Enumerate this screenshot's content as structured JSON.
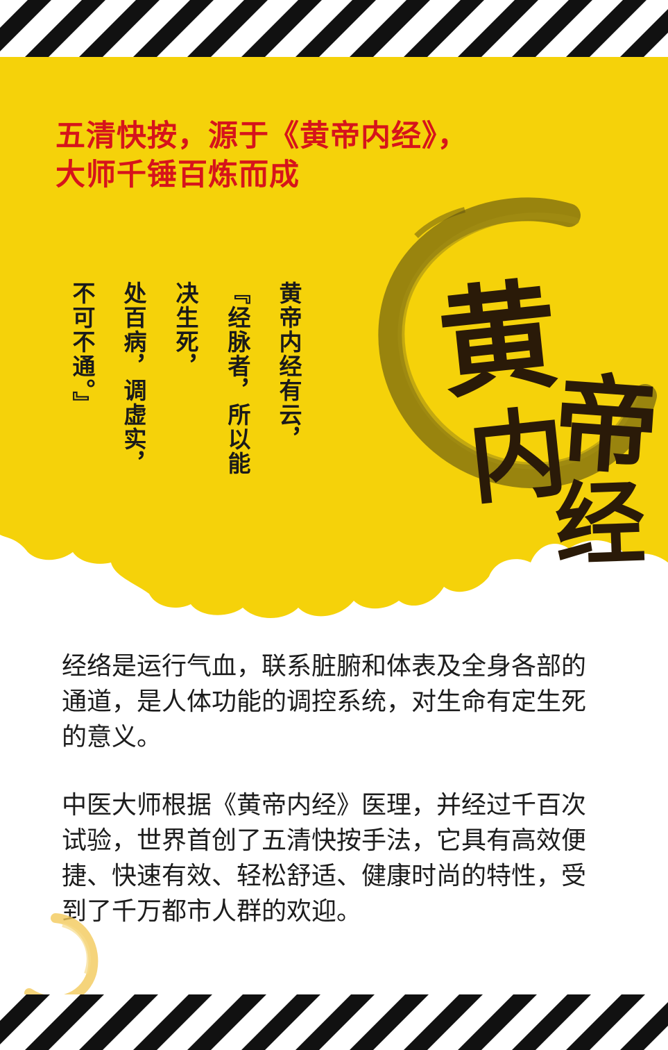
{
  "headline": {
    "line1": "五清快按，源于《黄帝内经》，",
    "line2": "大师千锤百炼而成"
  },
  "poem": {
    "col1": "黄帝内经有云，",
    "col2": "『经脉者，所以能",
    "col3": "决生死，",
    "col4": "处百病，调虚实，",
    "col5": "不可不通。』"
  },
  "calligraphy": {
    "char1": "黄",
    "char2": "帝",
    "char3": "内",
    "char4": "经"
  },
  "body": {
    "paragraph1": "经络是运行气血，联系脏腑和体表及全身各部的通道，是人体功能的调控系统，对生命有定生死的意义。",
    "paragraph2": "中医大师根据《黄帝内经》医理，并经过千百次试验，世界首创了五清快按手法，它具有高效便捷、快速有效、轻松舒适、健康时尚的特性，受到了千万都市人群的欢迎。"
  },
  "colors": {
    "panel_yellow": "#f5d20a",
    "headline_red": "#d6141b",
    "stripe_black": "#111111",
    "ring_olive": "#7a6a10"
  }
}
